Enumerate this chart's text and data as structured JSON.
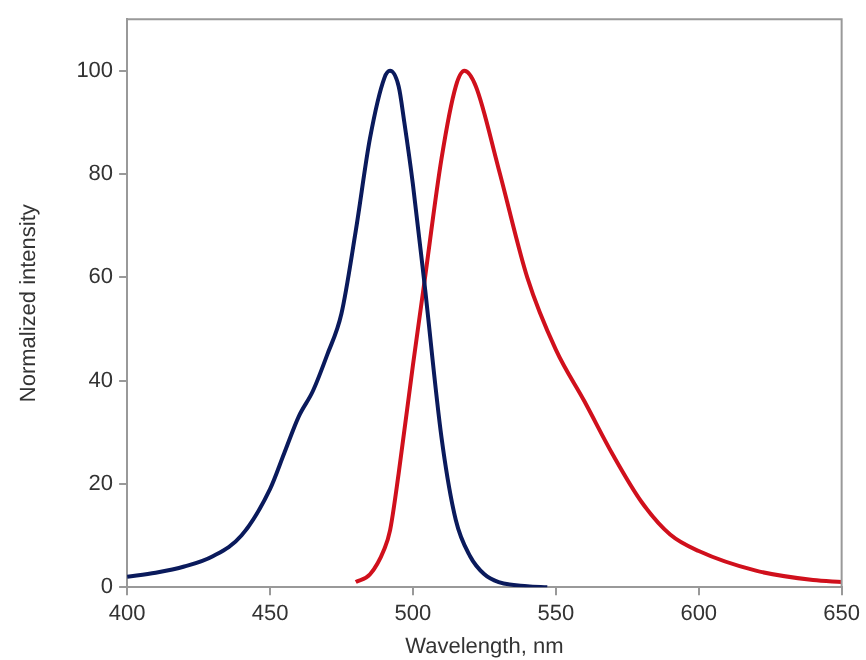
{
  "chart_data": {
    "type": "line",
    "xlabel": "Wavelength, nm",
    "ylabel": "Normalized intensity",
    "xlim": [
      400,
      650
    ],
    "xticks": [
      400,
      450,
      500,
      550,
      600,
      650
    ],
    "ylim": [
      0,
      110
    ],
    "yticks": [
      0,
      20,
      40,
      60,
      80,
      100
    ],
    "grid": false,
    "legend": false,
    "marker": "none",
    "line_style": "solid",
    "series": [
      {
        "color": "#0a1a5c",
        "x": [
          400,
          410,
          420,
          430,
          440,
          450,
          455,
          460,
          465,
          470,
          475,
          480,
          485,
          490,
          492,
          495,
          497,
          500,
          504,
          510,
          515,
          520,
          525,
          530,
          540,
          547
        ],
        "values": [
          2,
          2.8,
          4,
          6,
          10,
          19,
          26,
          33,
          38,
          45,
          53,
          69,
          87,
          98.6,
          100,
          97,
          90,
          78,
          59,
          29,
          13,
          6,
          2.5,
          1,
          0.2,
          0
        ]
      },
      {
        "color": "#d0101c",
        "x": [
          480,
          485,
          490,
          492,
          495,
          500,
          504,
          510,
          515,
          518,
          522,
          530,
          540,
          550,
          560,
          570,
          580,
          590,
          600,
          620,
          640,
          650
        ],
        "values": [
          1,
          2.5,
          7.4,
          11,
          22,
          43,
          59,
          83,
          97,
          100,
          97,
          81,
          60,
          46,
          36,
          25.6,
          16.5,
          10.2,
          7,
          3.2,
          1.4,
          1
        ]
      }
    ]
  }
}
